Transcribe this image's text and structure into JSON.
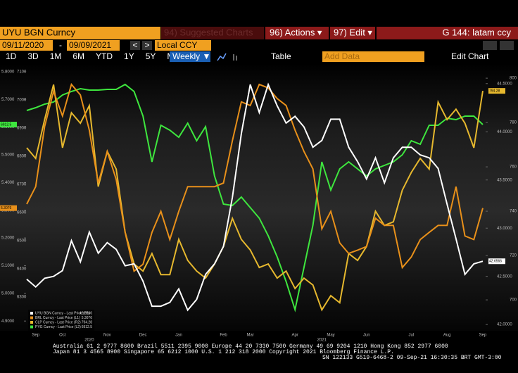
{
  "toolbar": {
    "security": "UYU BGN Curncy",
    "suggested": "94) Suggested Charts",
    "actions": "96) Actions ▾",
    "edit": "97) Edit ▾",
    "screen": "G 144: latam ccy",
    "start_date": "09/11/2020",
    "dash": "-",
    "end_date": "09/09/2021",
    "prev": "<",
    "next": ">",
    "currency": "Local CCY",
    "ranges": [
      "1D",
      "3D",
      "1M",
      "6M",
      "YTD",
      "1Y",
      "5Y",
      "Max"
    ],
    "period": "Weekly ▼",
    "table": "Table",
    "add_data": "Add Data",
    "edit_chart": "Edit Chart"
  },
  "chart_data": {
    "type": "line",
    "categories": [
      null,
      "Sep",
      null,
      null,
      "Oct",
      null,
      null,
      null,
      null,
      "Nov",
      null,
      null,
      null,
      "Dec",
      null,
      null,
      null,
      "Jan",
      null,
      null,
      null,
      null,
      "Feb",
      null,
      null,
      "Mar",
      null,
      null,
      null,
      null,
      "Apr",
      null,
      null,
      null,
      "May",
      null,
      null,
      null,
      "Jun",
      null,
      null,
      null,
      null,
      "Jul",
      null,
      null,
      null,
      "Aug",
      null,
      null,
      null,
      "Sep"
    ],
    "x_year_labels": [
      "2020",
      "2021"
    ],
    "ylim": [
      4.87,
      5.83
    ],
    "yticks": [
      {
        "value": 5.8,
        "label": "5.8000"
      },
      {
        "value": 5.7,
        "label": "5.7000"
      },
      {
        "value": 5.6,
        "label": "5.6000"
      },
      {
        "value": 5.5,
        "label": "5.5000"
      },
      {
        "value": 5.4,
        "label": "5.4000"
      },
      {
        "value": 5.3,
        "label": "5.3000"
      },
      {
        "value": 5.2,
        "label": "5.2000"
      },
      {
        "value": 5.1,
        "label": "5.1000"
      },
      {
        "value": 5.0,
        "label": "5.0000"
      },
      {
        "value": 4.9,
        "label": "4.9000"
      }
    ],
    "ylim_l2": [
      6185,
      7130
    ],
    "yticks_l2": [
      7100,
      7000,
      6900,
      6800,
      6700,
      6600,
      6500,
      6400,
      6300
    ],
    "y2lim": [
      41.95,
      44.71
    ],
    "y2ticks": [
      {
        "value": 44.5,
        "label": "44.5000"
      },
      {
        "value": 44.0,
        "label": "44.0000"
      },
      {
        "value": 43.5,
        "label": "43.5000"
      },
      {
        "value": 43.0,
        "label": "43.0000"
      },
      {
        "value": 42.5,
        "label": "42.5000"
      },
      {
        "value": 42.0,
        "label": "42.0000"
      }
    ],
    "y2lim_r2": [
      686.7,
      806.7
    ],
    "y2ticks_r2": [
      800,
      780,
      760,
      740,
      720,
      700
    ],
    "series": [
      {
        "name": "UYU BGN Curncy - Last Price (R1)",
        "last_label": "42.6566",
        "color": "#ffffff",
        "axis": "y2",
        "values": [
          42.47,
          42.39,
          42.48,
          42.5,
          42.56,
          42.87,
          42.65,
          42.96,
          42.74,
          42.85,
          42.78,
          42.61,
          42.63,
          42.45,
          42.19,
          42.19,
          42.23,
          42.37,
          42.15,
          42.26,
          42.52,
          42.63,
          42.81,
          43.32,
          43.98,
          44.49,
          44.2,
          44.49,
          44.27,
          44.09,
          44.16,
          44.05,
          43.84,
          43.91,
          44.13,
          44.13,
          43.84,
          43.69,
          43.51,
          43.73,
          43.47,
          43.73,
          43.84,
          43.84,
          43.76,
          43.73,
          43.62,
          43.25,
          42.89,
          42.52,
          42.63,
          42.6566
        ]
      },
      {
        "name": "BRL Curncy - Last Price (L1)",
        "last_label": "5.3076",
        "color": "#e8901a",
        "axis": "y",
        "values": [
          5.322,
          5.385,
          5.602,
          5.729,
          5.64,
          5.754,
          5.716,
          5.589,
          5.398,
          5.512,
          5.411,
          5.22,
          5.08,
          5.105,
          5.22,
          5.296,
          5.194,
          5.296,
          5.385,
          5.385,
          5.385,
          5.385,
          5.398,
          5.551,
          5.691,
          5.678,
          5.754,
          5.741,
          5.703,
          5.678,
          5.589,
          5.512,
          5.449,
          5.233,
          5.296,
          5.182,
          5.144,
          5.156,
          5.169,
          5.271,
          5.245,
          5.245,
          5.093,
          5.131,
          5.194,
          5.22,
          5.245,
          5.245,
          5.385,
          5.207,
          5.194,
          5.3076
        ]
      },
      {
        "name": "CLP Curncy - Last Price (R2)",
        "last_label": "794.28",
        "color": "#e6b82e",
        "axis": "y2_r2",
        "values": [
          768.6,
          763.8,
          781.3,
          797.1,
          768.6,
          784.4,
          779.7,
          787.6,
          751.1,
          767.0,
          759.0,
          730.5,
          716.2,
          713.0,
          720.9,
          711.4,
          711.4,
          727.3,
          717.8,
          713.0,
          709.8,
          716.2,
          724.1,
          736.8,
          727.3,
          722.5,
          714.6,
          716.2,
          709.8,
          713.0,
          705.1,
          709.8,
          706.7,
          695.5,
          701.9,
          698.7,
          720.9,
          717.8,
          724.1,
          740.0,
          733.6,
          735.2,
          749.5,
          757.5,
          763.8,
          759.0,
          789.2,
          781.3,
          786.0,
          779.7,
          768.6,
          794.28
        ]
      },
      {
        "name": "PYG Curncy - Last Price (L2)",
        "last_label": "6912.5",
        "color": "#3ee63e",
        "axis": "y_l2",
        "values": [
          6962.5,
          6972.5,
          6985,
          6992.5,
          7017.5,
          7030,
          7040,
          7035,
          7035,
          7037.5,
          7037.5,
          7055,
          7030,
          6942.5,
          6780,
          6910,
          6892.5,
          6867.5,
          6917.5,
          6855,
          6905,
          6730,
          6630,
          6625,
          6655,
          6617.5,
          6580,
          6517.5,
          6442.5,
          6355,
          6255,
          6405,
          6555,
          6780,
          6680,
          6755,
          6780,
          6755,
          6730,
          6755,
          6767.5,
          6780,
          6805,
          6855,
          6842.5,
          6910,
          6910,
          6935,
          6930,
          6942.5,
          6942.5,
          6912.5
        ]
      }
    ]
  },
  "footer": {
    "line1": "Australia 61 2 9777 8600 Brazil 5511 2395 9000 Europe 44 20 7330 7500 Germany 49 69 9204 1210 Hong Kong 852 2977 6000",
    "line2": "Japan 81 3 4565 8900      Singapore 65 6212 1000      U.S. 1 212 318 2000      Copyright 2021 Bloomberg Finance L.P.",
    "line3": "SN 122133 G519-6468-2 09-Sep-21 16:30:35 BRT  GMT-3:00"
  }
}
